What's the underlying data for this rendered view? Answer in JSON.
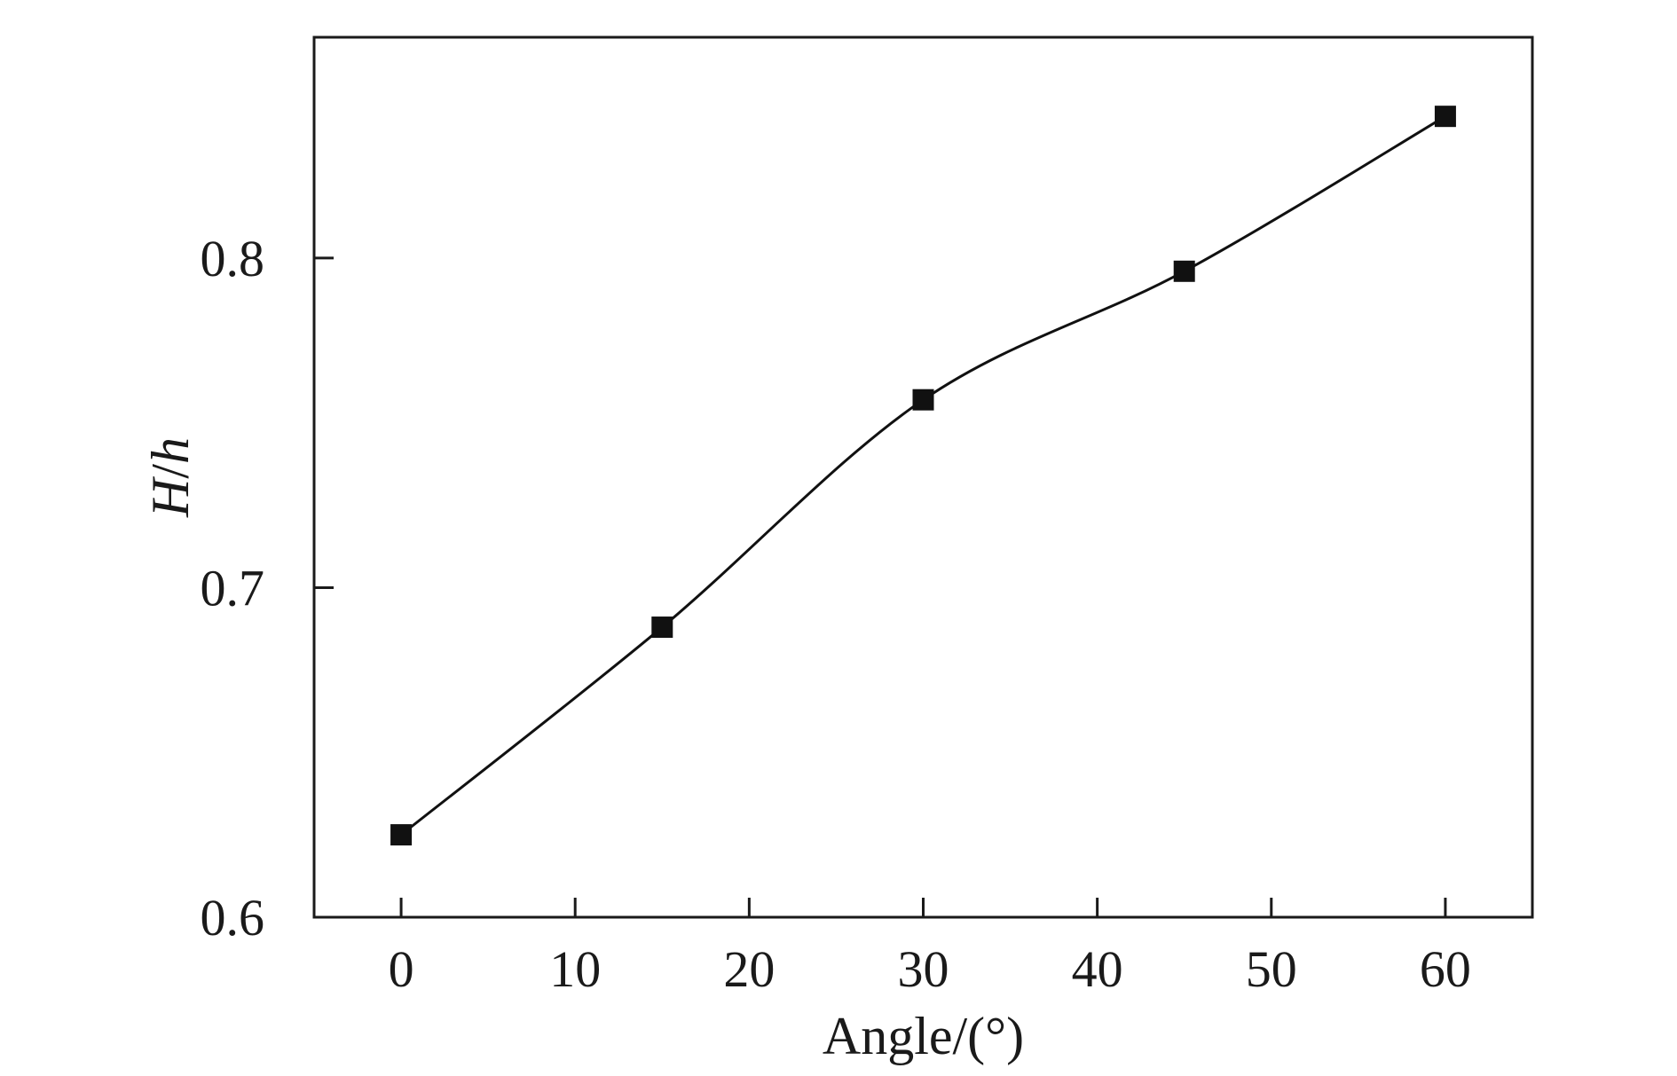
{
  "chart_data": {
    "type": "line",
    "xlabel": "Angle/(°)",
    "ylabel_parts": [
      {
        "text": "H",
        "italic": true
      },
      {
        "text": "/",
        "italic": false
      },
      {
        "text": "h",
        "italic": true
      }
    ],
    "xlim": [
      -5,
      65
    ],
    "ylim": [
      0.6,
      0.867
    ],
    "xticks": [
      0,
      10,
      20,
      30,
      40,
      50,
      60
    ],
    "xtick_labels": [
      "0",
      "10",
      "20",
      "30",
      "40",
      "50",
      "60"
    ],
    "yticks": [
      0.6,
      0.7,
      0.8
    ],
    "ytick_labels": [
      "0.6",
      "0.7",
      "0.8"
    ],
    "grid": false,
    "legend": false,
    "series": [
      {
        "marker": "square",
        "color": "#111111",
        "line": "smooth",
        "x": [
          0,
          15,
          30,
          45,
          60
        ],
        "y": [
          0.625,
          0.688,
          0.757,
          0.796,
          0.843
        ]
      }
    ]
  }
}
